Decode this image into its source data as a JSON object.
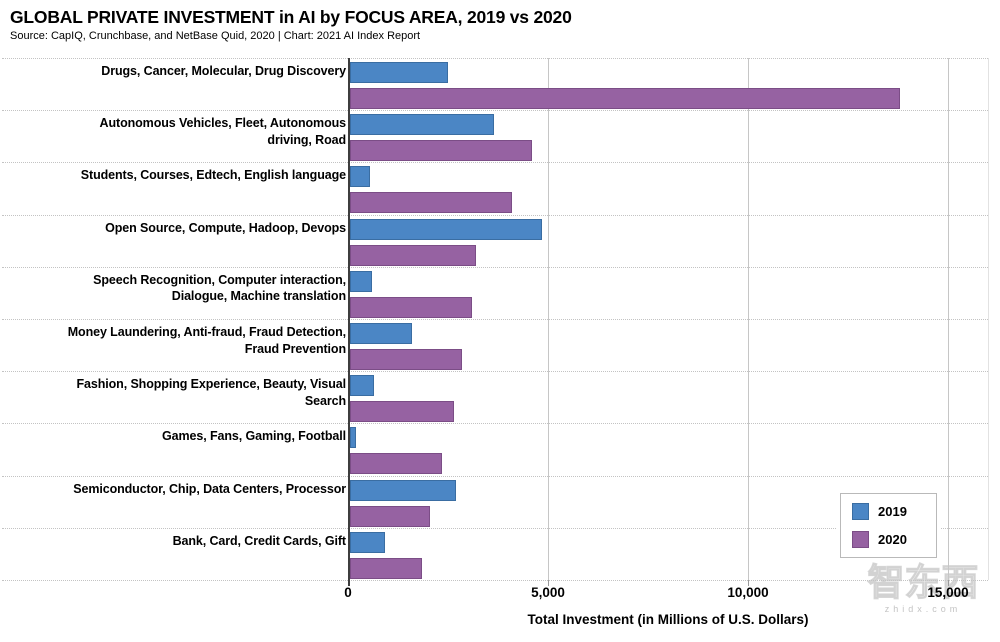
{
  "header": {
    "title": "GLOBAL PRIVATE INVESTMENT in AI by FOCUS AREA, 2019 vs 2020",
    "source": "Source: CapIQ, Crunchbase, and NetBase Quid, 2020 | Chart: 2021 AI Index Report"
  },
  "chart_data": {
    "type": "bar",
    "orientation": "horizontal",
    "title": "GLOBAL PRIVATE INVESTMENT in AI by FOCUS AREA, 2019 vs 2020",
    "xlabel": "Total Investment (in Millions of U.S. Dollars)",
    "xlim": [
      0,
      16000
    ],
    "xticks": [
      0,
      5000,
      10000,
      15000
    ],
    "xtick_labels": [
      "0",
      "5,000",
      "10,000",
      "15,000"
    ],
    "grid": "vertical",
    "legend_position": "bottom-right",
    "categories": [
      "Drugs, Cancer, Molecular, Drug Discovery",
      "Autonomous Vehicles, Fleet, Autonomous driving, Road",
      "Students, Courses, Edtech, English language",
      "Open Source, Compute, Hadoop, Devops",
      "Speech Recognition, Computer interaction, Dialogue, Machine translation",
      "Money Laundering, Anti-fraud, Fraud Detection, Fraud Prevention",
      "Fashion, Shopping Experience, Beauty, Visual Search",
      "Games, Fans, Gaming, Football",
      "Semiconductor, Chip, Data Centers, Processor",
      "Bank, Card, Credit Cards, Gift"
    ],
    "category_lines": [
      [
        "Drugs, Cancer, Molecular, Drug Discovery"
      ],
      [
        "Autonomous Vehicles, Fleet, Autonomous",
        "driving, Road"
      ],
      [
        "Students, Courses, Edtech, English language"
      ],
      [
        "Open Source, Compute, Hadoop, Devops"
      ],
      [
        "Speech Recognition, Computer interaction,",
        "Dialogue, Machine translation"
      ],
      [
        "Money Laundering, Anti-fraud, Fraud Detection,",
        "Fraud Prevention"
      ],
      [
        "Fashion, Shopping Experience, Beauty, Visual",
        "Search"
      ],
      [
        "Games, Fans, Gaming, Football"
      ],
      [
        "Semiconductor, Chip, Data Centers, Processor"
      ],
      [
        "Bank, Card, Credit Cards, Gift"
      ]
    ],
    "series": [
      {
        "name": "2019",
        "color": "#4b86c5",
        "border_color": "#3a6da2",
        "values": [
          2450,
          3600,
          500,
          4800,
          550,
          1550,
          600,
          150,
          2650,
          875
        ]
      },
      {
        "name": "2020",
        "color": "#9662a2",
        "border_color": "#7b4d86",
        "values": [
          13750,
          4550,
          4050,
          3150,
          3050,
          2800,
          2600,
          2300,
          2000,
          1800
        ]
      }
    ]
  },
  "watermark": {
    "logo": "智东西",
    "domain": "zhidx.com"
  }
}
